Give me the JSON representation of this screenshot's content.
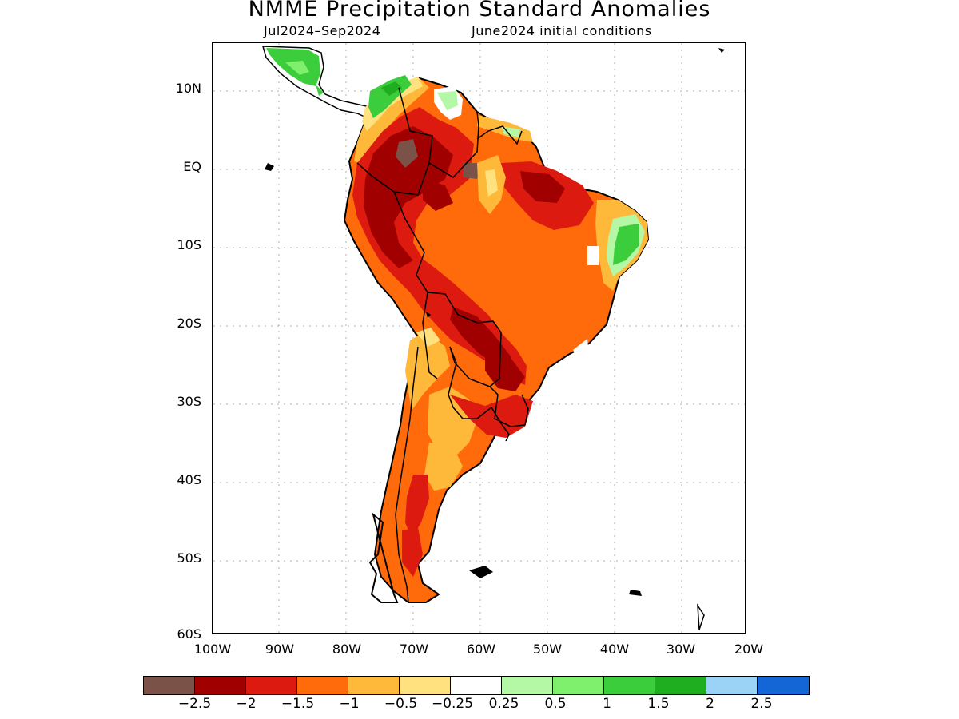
{
  "title": "NMME Precipitation Standard Anomalies",
  "period": "Jul2024–Sep2024",
  "init_conditions": "June2024 initial conditions",
  "lat_labels": [
    "10N",
    "EQ",
    "10S",
    "20S",
    "30S",
    "40S",
    "50S",
    "60S"
  ],
  "lon_labels": [
    "100W",
    "90W",
    "80W",
    "70W",
    "60W",
    "50W",
    "40W",
    "30W",
    "20W"
  ],
  "colorbar": {
    "colors": [
      "#7a5248",
      "#a00000",
      "#dd1a10",
      "#ff6a0a",
      "#ffb93a",
      "#ffe27f",
      "#ffffff",
      "#b4f8a6",
      "#7ef06e",
      "#3ccd3c",
      "#1fae1f",
      "#9ad3f6",
      "#1465d6"
    ],
    "labels": [
      "−2.5",
      "−2",
      "−1.5",
      "−1",
      "−0.5",
      "−0.25",
      "0.25",
      "0.5",
      "1",
      "1.5",
      "2",
      "2.5"
    ]
  },
  "map_extent": {
    "lon": [
      -100,
      -20
    ],
    "lat": [
      -60,
      15
    ]
  }
}
